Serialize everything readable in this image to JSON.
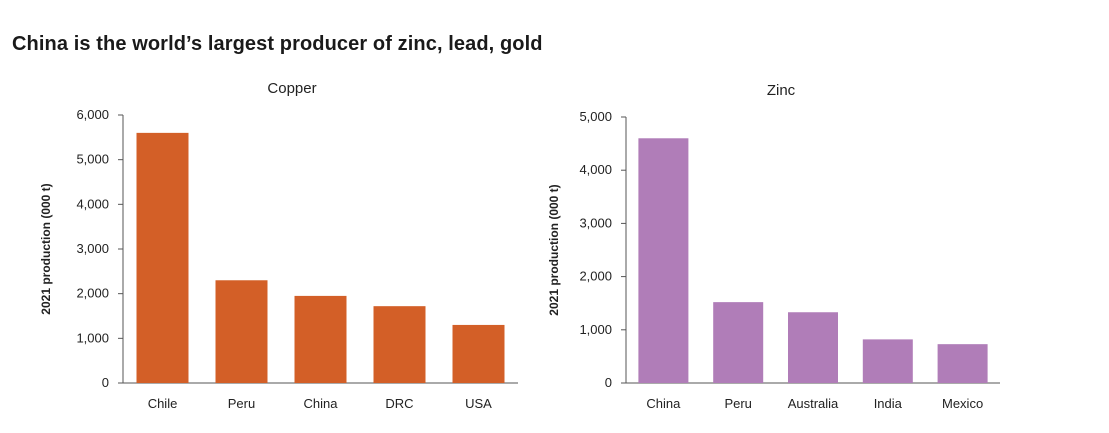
{
  "headline": "China is the world’s largest producer of zinc, lead, gold",
  "chart_data": [
    {
      "type": "bar",
      "title": "Copper",
      "categories": [
        "Chile",
        "Peru",
        "China",
        "DRC",
        "USA"
      ],
      "values": [
        5600,
        2300,
        1950,
        1720,
        1300
      ],
      "ylabel": "2021 production (000 t)",
      "xlabel": "",
      "ylim": [
        0,
        6000
      ],
      "yticks": [
        0,
        1000,
        2000,
        3000,
        4000,
        5000,
        6000
      ],
      "ytick_labels": [
        "0",
        "1,000",
        "2,000",
        "3,000",
        "4,000",
        "5,000",
        "6,000"
      ],
      "color": "#d35f27",
      "grid": false
    },
    {
      "type": "bar",
      "title": "Zinc",
      "categories": [
        "China",
        "Peru",
        "Australia",
        "India",
        "Mexico"
      ],
      "values": [
        4600,
        1520,
        1330,
        820,
        730
      ],
      "ylabel": "2021 production (000 t)",
      "xlabel": "",
      "ylim": [
        0,
        5000
      ],
      "yticks": [
        0,
        1000,
        2000,
        3000,
        4000,
        5000
      ],
      "ytick_labels": [
        "0",
        "1,000",
        "2,000",
        "3,000",
        "4,000",
        "5,000"
      ],
      "color": "#b07db8",
      "grid": false
    }
  ]
}
